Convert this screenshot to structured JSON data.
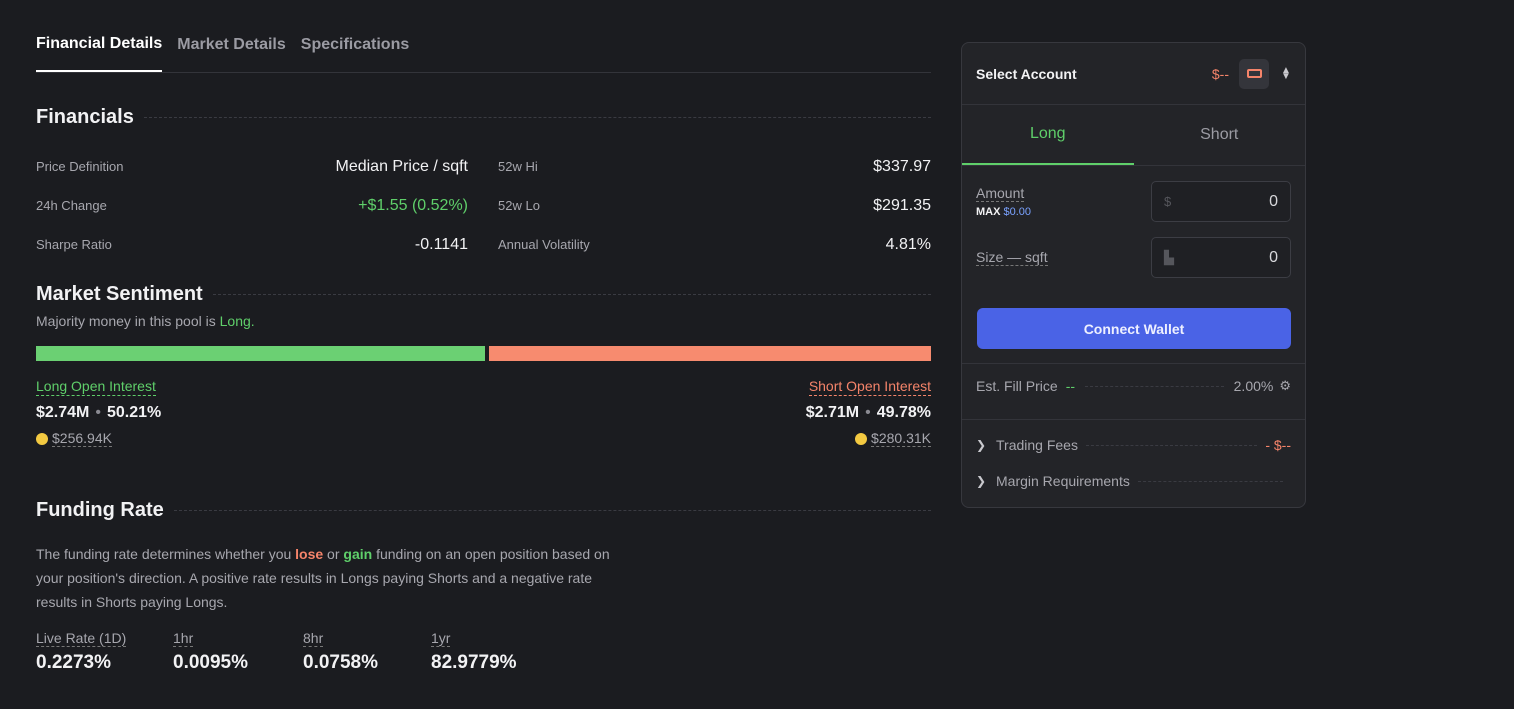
{
  "tabs": [
    "Financial Details",
    "Market Details",
    "Specifications"
  ],
  "financials": {
    "title": "Financials",
    "rows": [
      {
        "l1": "Price Definition",
        "v1": "Median Price / sqft",
        "l2": "52w Hi",
        "v2": "$337.97"
      },
      {
        "l1": "24h Change",
        "v1": "+$1.55 (0.52%)",
        "l2": "52w Lo",
        "v2": "$291.35"
      },
      {
        "l1": "Sharpe Ratio",
        "v1": "-0.1141",
        "l2": "Annual Volatility",
        "v2": "4.81%"
      }
    ]
  },
  "sentiment": {
    "title": "Market Sentiment",
    "sub_prefix": "Majority money in this pool is ",
    "sub_side": "Long.",
    "long_fraction": 0.5021,
    "long": {
      "label": "Long Open Interest",
      "amount": "$2.74M",
      "pct": "50.21%",
      "sub": "$256.94K"
    },
    "short": {
      "label": "Short Open Interest",
      "amount": "$2.71M",
      "pct": "49.78%",
      "sub": "$280.31K"
    },
    "dot": "•",
    "colors": {
      "long": "#6bd073",
      "short": "#f78b6f"
    }
  },
  "funding": {
    "title": "Funding Rate",
    "desc_1": "The funding rate determines whether you ",
    "lose": "lose",
    "desc_2": " or ",
    "gain": "gain",
    "desc_3": " funding on an open position based on your position's direction. A positive rate results in Longs paying Shorts and a negative rate results in Shorts paying Longs.",
    "rates": [
      {
        "label": "Live Rate (1D)",
        "value": "0.2273%"
      },
      {
        "label": "1hr",
        "value": "0.0095%"
      },
      {
        "label": "8hr",
        "value": "0.0758%"
      },
      {
        "label": "1yr",
        "value": "82.9779%"
      }
    ]
  },
  "panel": {
    "title": "Select Account",
    "balance": "$--",
    "side_tabs": [
      "Long",
      "Short"
    ],
    "amount_label": "Amount",
    "max_label": "MAX",
    "max_value": "$0.00",
    "amount_prefix": "$",
    "amount_value": "0",
    "size_label": "Size — sqft",
    "size_value": "0",
    "connect": "Connect Wallet",
    "fill_label": "Est. Fill Price",
    "fill_value": "--",
    "slippage": "2.00%",
    "fees_label": "Trading Fees",
    "fees_value": "- $--",
    "margin_label": "Margin Requirements"
  }
}
